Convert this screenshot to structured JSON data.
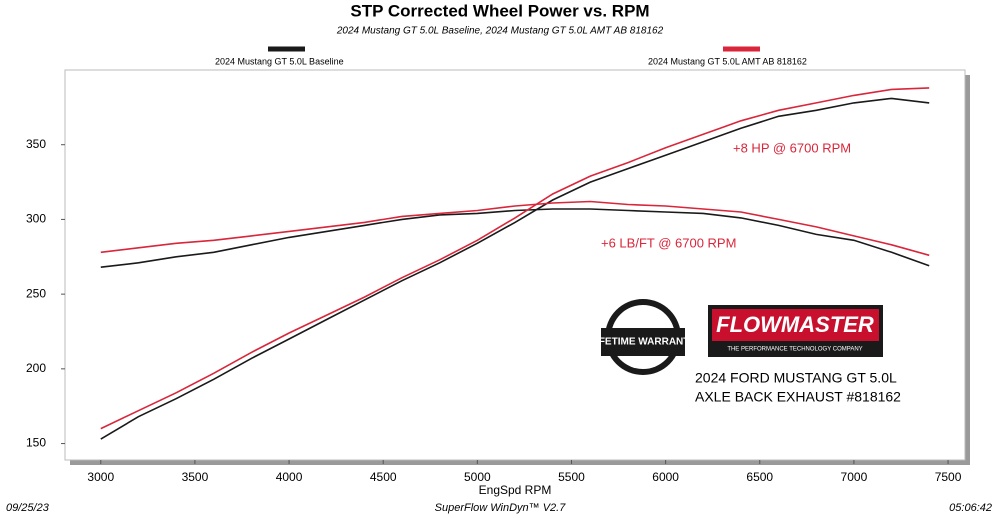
{
  "chart_data": {
    "type": "line",
    "title": "STP Corrected Wheel Power vs. RPM",
    "subtitle": "2024 Mustang GT 5.0L Baseline, 2024 Mustang GT 5.0L AMT AB 818162",
    "x_label": "EngSpd  RPM",
    "x": [
      3000,
      3200,
      3400,
      3600,
      3800,
      4000,
      4200,
      4400,
      4600,
      4800,
      5000,
      5200,
      5400,
      5600,
      5800,
      6000,
      6200,
      6400,
      6600,
      6800,
      7000,
      7200,
      7400
    ],
    "series": [
      {
        "name": "2024 Mustang GT 5.0L Baseline",
        "color": "#1a1a1a",
        "power": [
          153,
          168,
          180,
          193,
          207,
          220,
          233,
          246,
          259,
          271,
          284,
          298,
          313,
          325,
          334,
          343,
          352,
          361,
          369,
          373,
          378,
          381,
          378
        ],
        "torque": [
          268,
          271,
          275,
          278,
          283,
          288,
          292,
          296,
          300,
          303,
          304,
          306,
          307,
          307,
          306,
          305,
          304,
          301,
          296,
          290,
          286,
          278,
          269
        ]
      },
      {
        "name": "2024 Mustang GT 5.0L AMT AB 818162",
        "color": "#d9263a",
        "power": [
          160,
          172,
          184,
          197,
          211,
          224,
          236,
          248,
          261,
          273,
          286,
          301,
          317,
          329,
          338,
          348,
          357,
          366,
          373,
          378,
          383,
          387,
          388
        ],
        "torque": [
          278,
          281,
          284,
          286,
          289,
          292,
          295,
          298,
          302,
          304,
          306,
          309,
          311,
          312,
          310,
          309,
          307,
          305,
          300,
          295,
          289,
          283,
          276
        ]
      }
    ],
    "xlim": [
      2810,
      7590
    ],
    "xticks": [
      3000,
      3500,
      4000,
      4500,
      5000,
      5500,
      6000,
      6500,
      7000,
      7500
    ],
    "ylim": [
      139,
      400
    ],
    "yticks": [
      150,
      200,
      250,
      300,
      350
    ],
    "annotations": [
      {
        "text": "+8 HP @ 6700 RPM",
        "color": "#d9263a"
      },
      {
        "text": "+6 LB/FT @ 6700 RPM",
        "color": "#d9263a"
      }
    ],
    "logo": {
      "brand": "FLOWMASTER",
      "tagline": "THE PERFORMANCE TECHNOLOGY COMPANY",
      "warranty": "LIFETIME WARRANTY",
      "caption": [
        "2024 FORD MUSTANG GT 5.0L",
        "AXLE BACK EXHAUST #818162"
      ]
    },
    "footer": {
      "date": "09/25/23",
      "software": "SuperFlow WinDyn™ V2.7",
      "time": "05:06:42"
    }
  }
}
